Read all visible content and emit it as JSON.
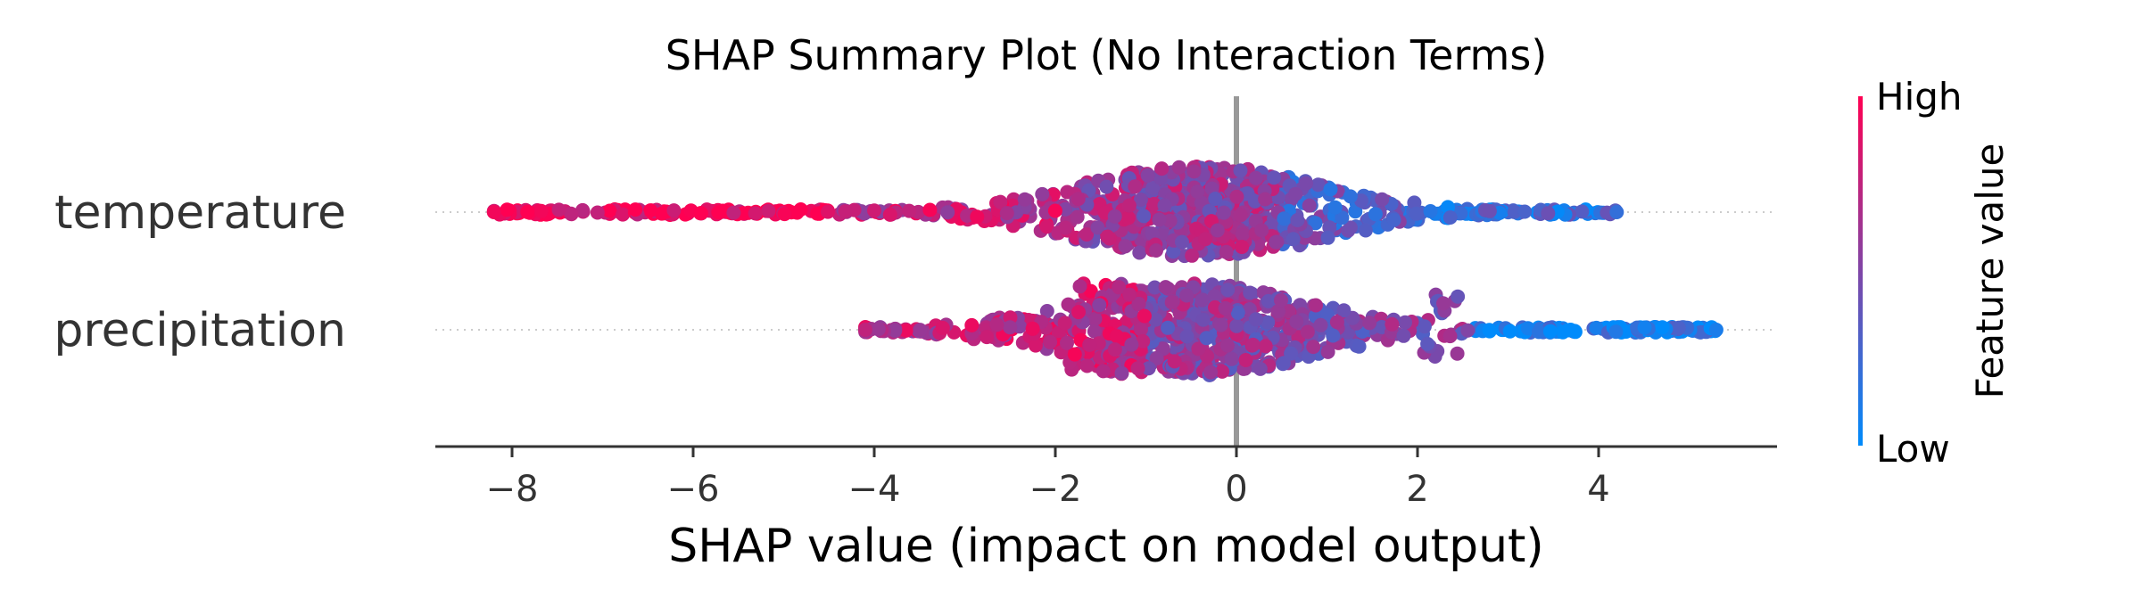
{
  "chart_data": {
    "type": "scatter",
    "title": "SHAP Summary Plot (No Interaction Terms)",
    "xlabel": "SHAP value (impact on model output)",
    "xlim": [
      -8.9,
      6.0
    ],
    "x_ticks": [
      -8,
      -6,
      -4,
      -2,
      0,
      2,
      4
    ],
    "x_tick_labels": [
      "−8",
      "−6",
      "−4",
      "−2",
      "0",
      "2",
      "4"
    ],
    "features": [
      {
        "name": "temperature",
        "x_range": [
          -8.2,
          4.2
        ],
        "max_density_x": -0.4,
        "high_values_at": "negative",
        "segments": [
          {
            "from": -8.2,
            "to": -4.5,
            "value": 0.95
          },
          {
            "from": -4.5,
            "to": -2.0,
            "value": 0.75
          },
          {
            "from": -2.0,
            "to": 0.5,
            "value": 0.6
          },
          {
            "from": 0.5,
            "to": 2.0,
            "value": 0.35
          },
          {
            "from": 2.0,
            "to": 4.2,
            "value": 0.2
          }
        ]
      },
      {
        "name": "precipitation",
        "x_range": [
          -4.1,
          5.3
        ],
        "max_density_x": -0.5,
        "high_values_at": "middle",
        "segments": [
          {
            "from": -4.1,
            "to": -1.0,
            "value": 0.75
          },
          {
            "from": -1.0,
            "to": 0.5,
            "value": 0.55
          },
          {
            "from": 0.5,
            "to": 2.6,
            "value": 0.5
          },
          {
            "from": 2.6,
            "to": 5.3,
            "value": 0.1
          }
        ]
      }
    ],
    "colorbar": {
      "label": "Feature value",
      "high_label": "High",
      "low_label": "Low"
    },
    "colors": {
      "high": "#ff0052",
      "low": "#008bfb",
      "zero_line": "#999999",
      "axis": "#333333"
    }
  }
}
